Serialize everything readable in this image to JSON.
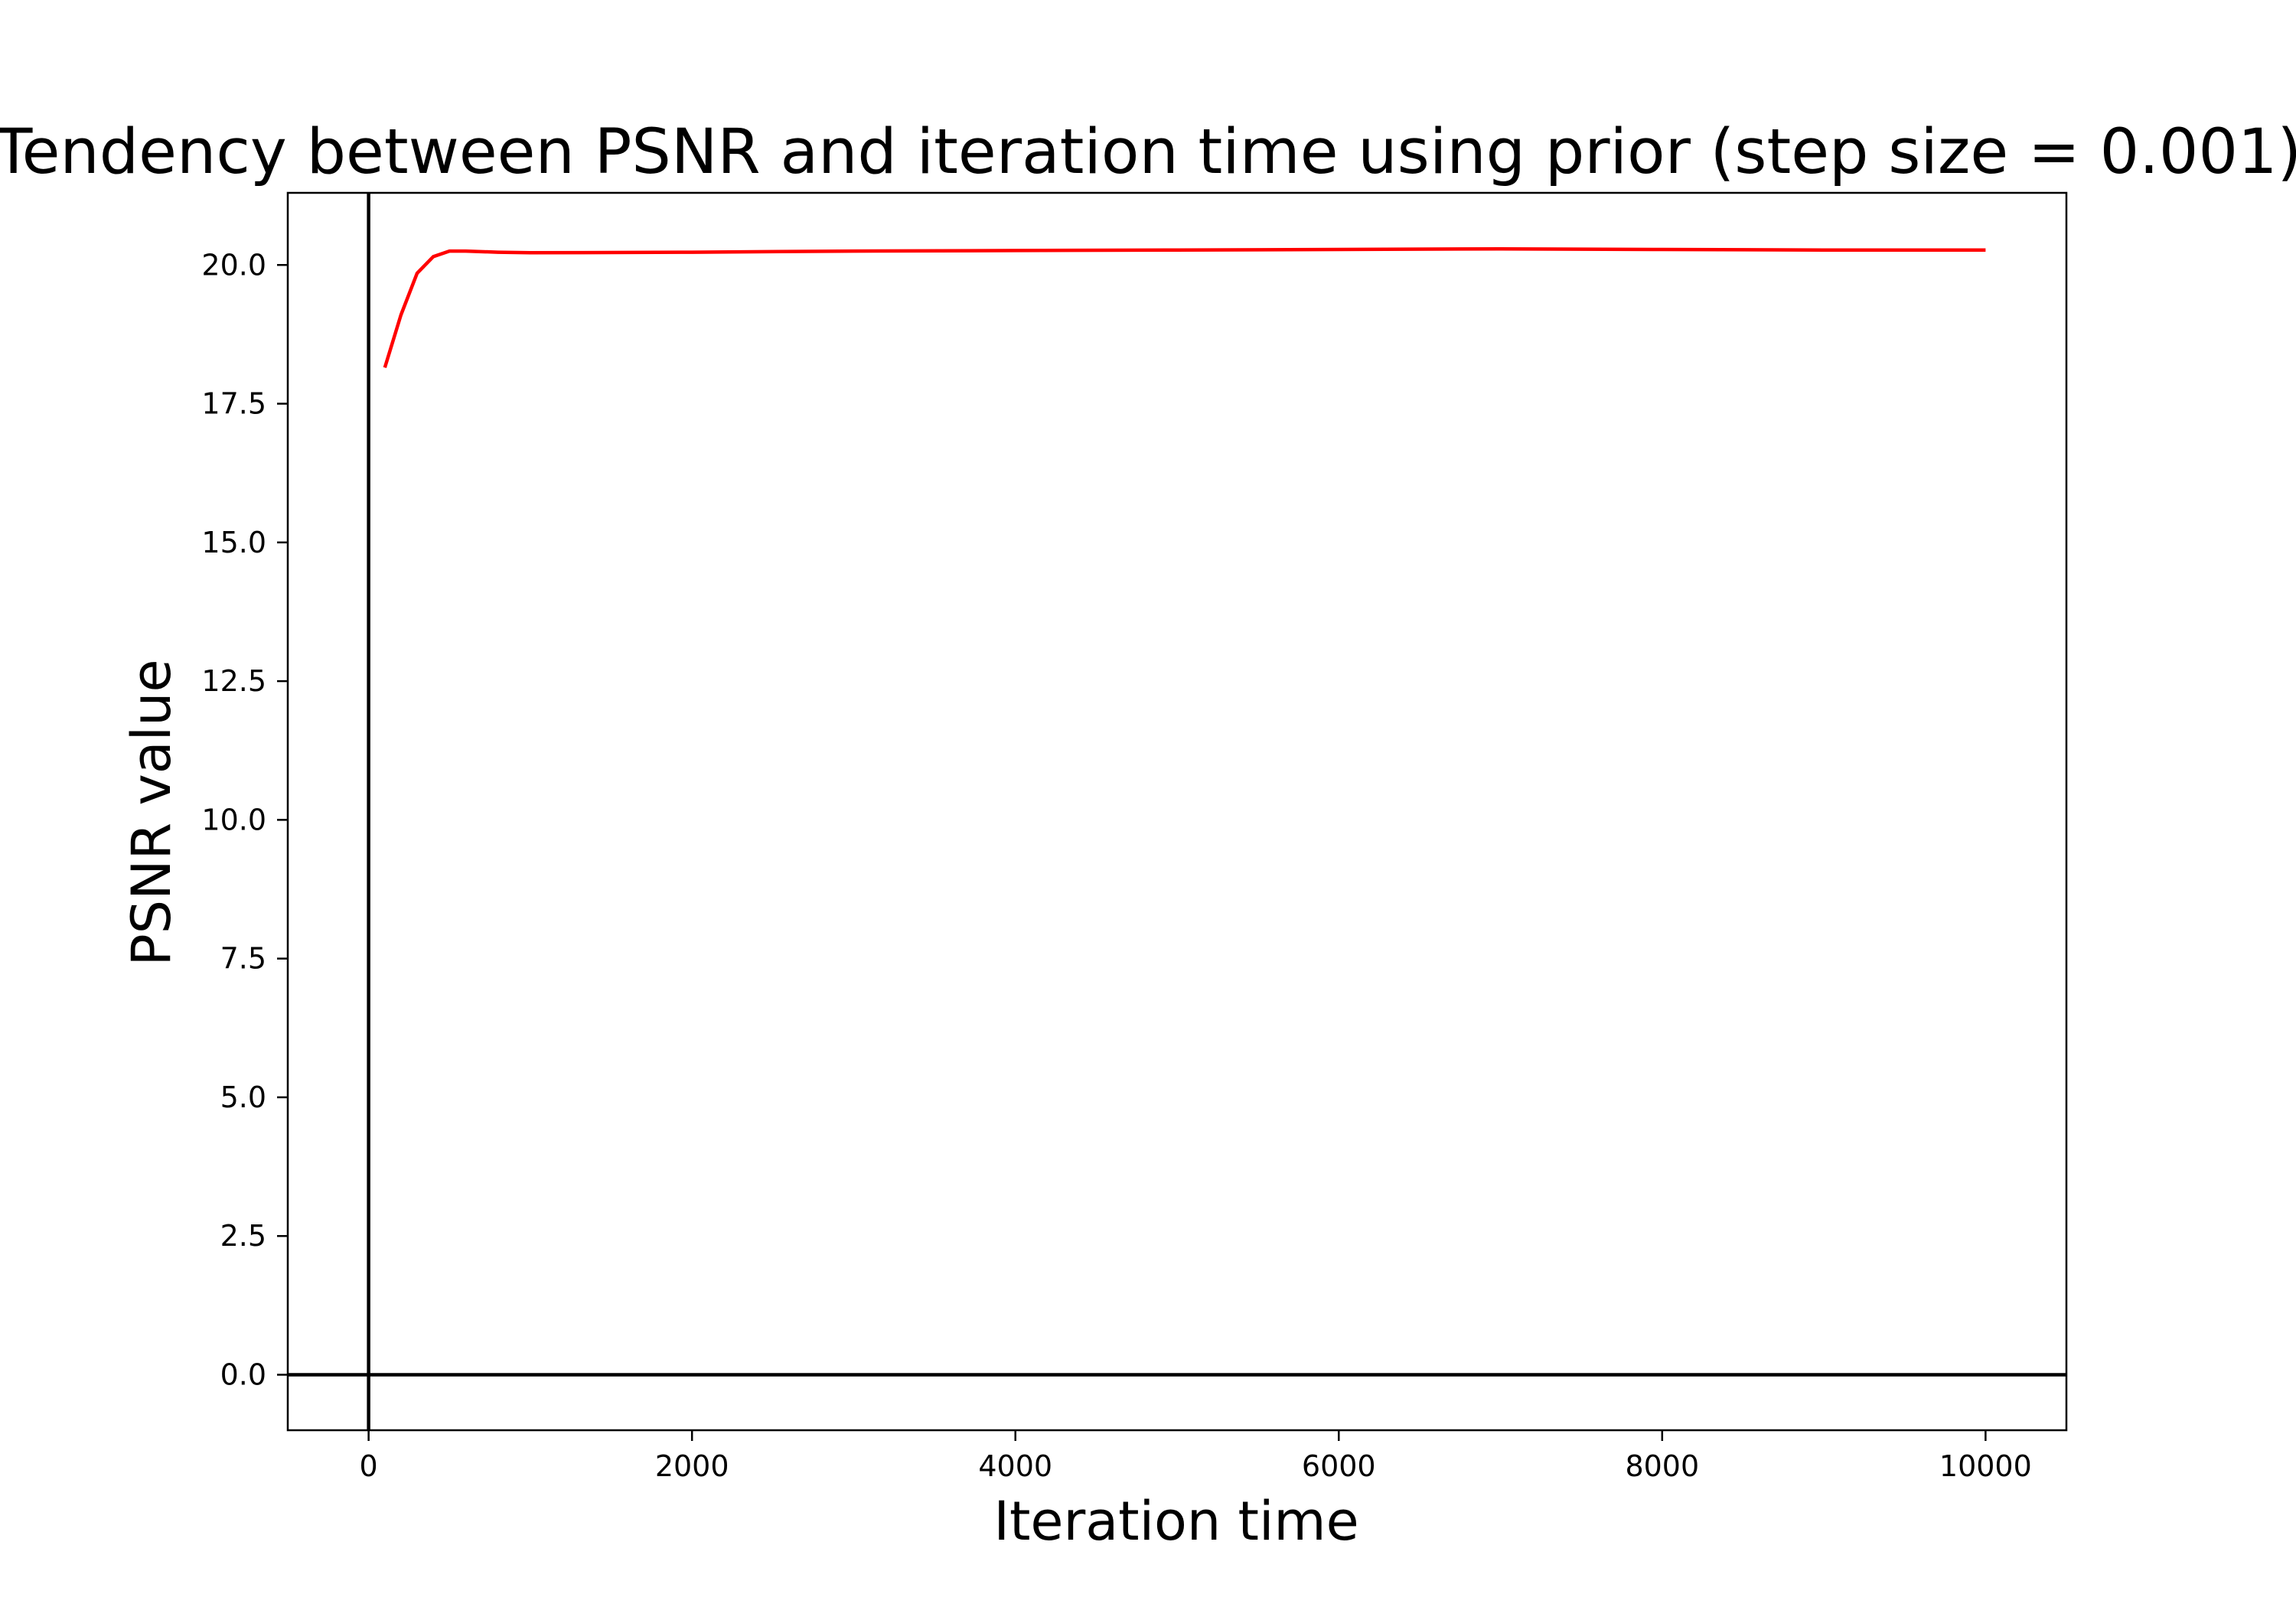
{
  "chart_data": {
    "type": "line",
    "title": "Tendency between PSNR and iteration time using prior (step size = 0.001)",
    "xlabel": "Iteration time",
    "ylabel": "PSNR value",
    "xlim": [
      -500,
      10500
    ],
    "ylim": [
      -1.0,
      21.3
    ],
    "x_ticks": [
      0,
      2000,
      4000,
      6000,
      8000,
      10000
    ],
    "x_tick_labels": [
      "0",
      "2000",
      "4000",
      "6000",
      "8000",
      "10000"
    ],
    "y_ticks": [
      0.0,
      2.5,
      5.0,
      7.5,
      10.0,
      12.5,
      15.0,
      17.5,
      20.0
    ],
    "y_tick_labels": [
      "0.0",
      "2.5",
      "5.0",
      "7.5",
      "10.0",
      "12.5",
      "15.0",
      "17.5",
      "20.0"
    ],
    "grid": false,
    "reference_lines": {
      "x": 0,
      "y": 0,
      "color": "#000000"
    },
    "series": [
      {
        "color": "#ff0000",
        "x": [
          100,
          200,
          300,
          400,
          500,
          600,
          800,
          1000,
          2000,
          3000,
          4000,
          5000,
          6000,
          7000,
          8000,
          9000,
          10000
        ],
        "y": [
          18.15,
          19.1,
          19.85,
          20.15,
          20.25,
          20.25,
          20.23,
          20.22,
          20.23,
          20.25,
          20.26,
          20.27,
          20.28,
          20.29,
          20.28,
          20.27,
          20.27
        ]
      }
    ]
  }
}
